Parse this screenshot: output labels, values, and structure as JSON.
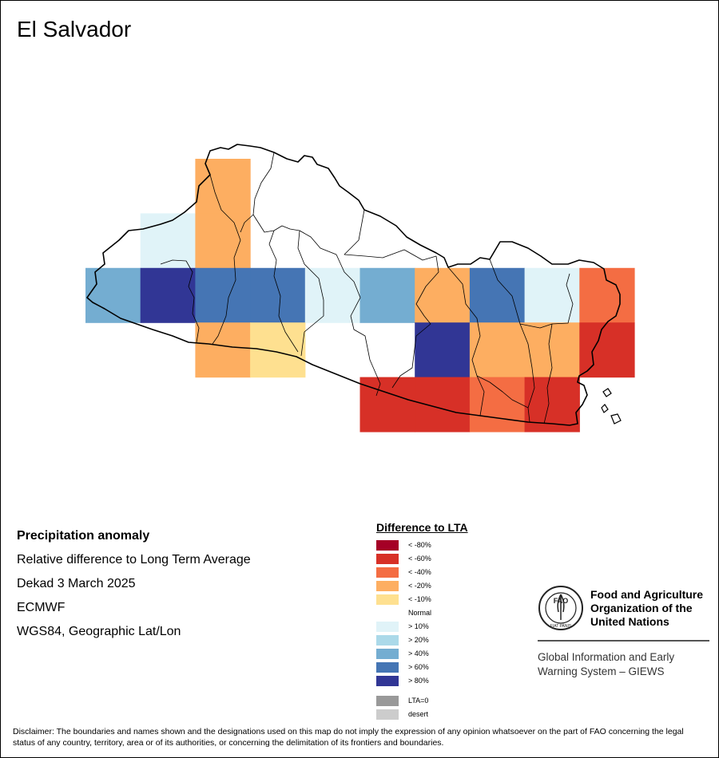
{
  "title": "El Salvador",
  "info": {
    "line1": "Precipitation anomaly",
    "line2": "Relative difference to Long Term Average",
    "line3": "Dekad 3 March 2025",
    "line4": "ECMWF",
    "line5": "WGS84, Geographic Lat/Lon"
  },
  "legend": {
    "title": "Difference to LTA",
    "items": [
      {
        "label": "< -80%",
        "color": "#a50026"
      },
      {
        "label": "< -60%",
        "color": "#d73027"
      },
      {
        "label": "< -40%",
        "color": "#f46d43"
      },
      {
        "label": "< -20%",
        "color": "#fdae61"
      },
      {
        "label": "< -10%",
        "color": "#fee090"
      },
      {
        "label": "Normal",
        "color": "#ffffff"
      },
      {
        "label": "> 10%",
        "color": "#e0f3f8"
      },
      {
        "label": "> 20%",
        "color": "#abd9e9"
      },
      {
        "label": "> 40%",
        "color": "#74add1"
      },
      {
        "label": "> 60%",
        "color": "#4575b4"
      },
      {
        "label": "> 80%",
        "color": "#313695"
      }
    ],
    "extra": [
      {
        "label": "LTA=0",
        "color": "#999999"
      },
      {
        "label": "desert",
        "color": "#cccccc"
      }
    ]
  },
  "grid": {
    "rows": [
      [
        null,
        null,
        "< -20%",
        null,
        null,
        null,
        null,
        null,
        null,
        null
      ],
      [
        null,
        "> 10%",
        "< -20%",
        null,
        null,
        null,
        null,
        null,
        null,
        null
      ],
      [
        "> 40%",
        "> 80%",
        "> 60%",
        "> 60%",
        "> 10%",
        "> 40%",
        "< -20%",
        "> 60%",
        "> 10%",
        "< -40%"
      ],
      [
        null,
        null,
        "< -20%",
        "< -10%",
        null,
        null,
        "> 80%",
        "< -20%",
        "< -20%",
        "< -60%"
      ],
      [
        null,
        null,
        null,
        null,
        null,
        "< -60%",
        "< -60%",
        "< -40%",
        "< -60%",
        null
      ]
    ]
  },
  "logo": {
    "org_line1": "Food and Agriculture",
    "org_line2": "Organization of the",
    "org_line3": "United Nations",
    "emblem_text": "FAO",
    "emblem_motto": "FIAT PANIS",
    "giews_line1": "Global Information and Early",
    "giews_line2": "Warning System – GIEWS"
  },
  "disclaimer": "Disclaimer: The boundaries and names shown and the designations used on this map do not imply the expression of any opinion whatsoever on the part of FAO concerning the legal status of any country, territory, area or of its authorities, or concerning the delimitation of its frontiers and boundaries."
}
